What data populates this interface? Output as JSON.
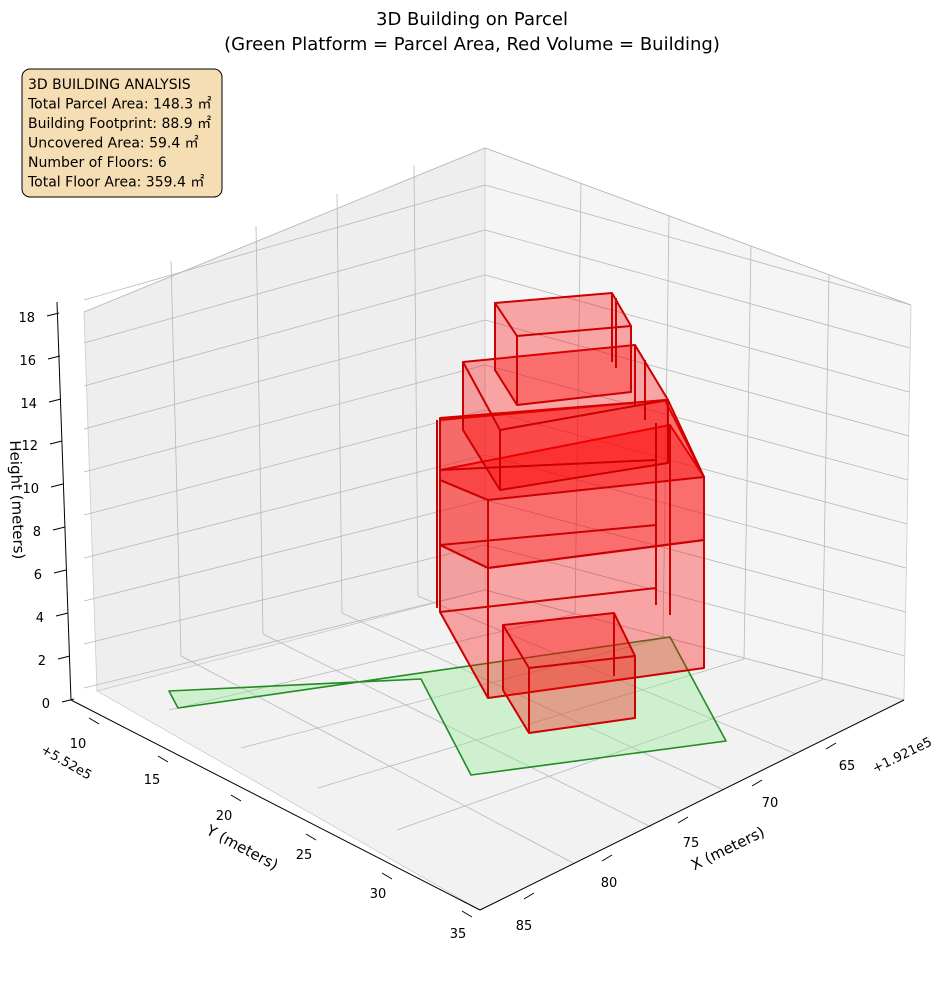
{
  "chart_data": {
    "type": "3d-polygons",
    "title_line1": "3D Building on Parcel",
    "title_line2": "(Green Platform = Parcel Area, Red Volume = Building)",
    "xlabel": "X (meters)",
    "ylabel": "Y (meters)",
    "zlabel": "Height (meters)",
    "x_offset_label": "+1.921e5",
    "y_offset_label": "+5.52e5",
    "x_ticks": [
      "65",
      "70",
      "75",
      "80",
      "85"
    ],
    "y_ticks": [
      "10",
      "15",
      "20",
      "25",
      "30",
      "35"
    ],
    "z_ticks": [
      "0",
      "2",
      "4",
      "6",
      "8",
      "10",
      "12",
      "14",
      "16",
      "18"
    ],
    "parcel_color": "#90ee90",
    "parcel_edge": "#228b22",
    "building_color": "#ff0000",
    "building_edge": "#cc0000",
    "info_lines": [
      "3D BUILDING ANALYSIS",
      "Total Parcel Area: 148.3 ㎡",
      "Building Footprint: 88.9 ㎡",
      "Uncovered Area: 59.4 ㎡",
      "Number of Floors: 6",
      "Total Floor Area: 359.4 ㎡"
    ]
  }
}
